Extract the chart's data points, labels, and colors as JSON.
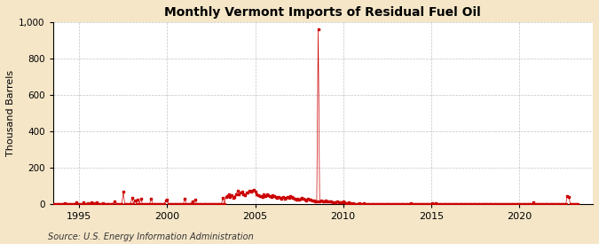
{
  "title": "Monthly Vermont Imports of Residual Fuel Oil",
  "ylabel": "Thousand Barrels",
  "source": "Source: U.S. Energy Information Administration",
  "bg_color": "#f5e6c8",
  "plot_bg_color": "#ffffff",
  "line_color": "#cc0000",
  "marker_color": "#cc0000",
  "ylim": [
    0,
    1000
  ],
  "yticks": [
    0,
    200,
    400,
    600,
    800,
    1000
  ],
  "ytick_labels": [
    "0",
    "200",
    "400",
    "600",
    "800",
    "1,000"
  ],
  "xlim_start": 1993.5,
  "xlim_end": 2024.2,
  "xticks": [
    1995,
    2000,
    2005,
    2010,
    2015,
    2020
  ],
  "data": [
    [
      1993.083,
      0
    ],
    [
      1993.167,
      0
    ],
    [
      1993.25,
      0
    ],
    [
      1993.333,
      0
    ],
    [
      1993.417,
      0
    ],
    [
      1993.5,
      0
    ],
    [
      1993.583,
      0
    ],
    [
      1993.667,
      0
    ],
    [
      1993.75,
      0
    ],
    [
      1993.833,
      0
    ],
    [
      1993.917,
      0
    ],
    [
      1994.0,
      0
    ],
    [
      1994.083,
      0
    ],
    [
      1994.167,
      5
    ],
    [
      1994.25,
      0
    ],
    [
      1994.333,
      0
    ],
    [
      1994.417,
      0
    ],
    [
      1994.5,
      0
    ],
    [
      1994.583,
      0
    ],
    [
      1994.667,
      0
    ],
    [
      1994.75,
      0
    ],
    [
      1994.833,
      10
    ],
    [
      1994.917,
      0
    ],
    [
      1995.0,
      0
    ],
    [
      1995.083,
      0
    ],
    [
      1995.167,
      0
    ],
    [
      1995.25,
      8
    ],
    [
      1995.333,
      0
    ],
    [
      1995.417,
      0
    ],
    [
      1995.5,
      5
    ],
    [
      1995.583,
      0
    ],
    [
      1995.667,
      10
    ],
    [
      1995.75,
      0
    ],
    [
      1995.833,
      5
    ],
    [
      1995.917,
      0
    ],
    [
      1996.0,
      10
    ],
    [
      1996.083,
      0
    ],
    [
      1996.167,
      0
    ],
    [
      1996.25,
      0
    ],
    [
      1996.333,
      5
    ],
    [
      1996.417,
      0
    ],
    [
      1996.5,
      0
    ],
    [
      1996.583,
      0
    ],
    [
      1996.667,
      0
    ],
    [
      1996.75,
      0
    ],
    [
      1996.833,
      0
    ],
    [
      1996.917,
      0
    ],
    [
      1997.0,
      15
    ],
    [
      1997.083,
      0
    ],
    [
      1997.167,
      0
    ],
    [
      1997.25,
      0
    ],
    [
      1997.333,
      0
    ],
    [
      1997.417,
      0
    ],
    [
      1997.5,
      65
    ],
    [
      1997.583,
      0
    ],
    [
      1997.667,
      0
    ],
    [
      1997.75,
      0
    ],
    [
      1997.833,
      0
    ],
    [
      1997.917,
      0
    ],
    [
      1998.0,
      35
    ],
    [
      1998.083,
      0
    ],
    [
      1998.167,
      20
    ],
    [
      1998.25,
      0
    ],
    [
      1998.333,
      25
    ],
    [
      1998.417,
      0
    ],
    [
      1998.5,
      30
    ],
    [
      1998.583,
      0
    ],
    [
      1998.667,
      0
    ],
    [
      1998.75,
      0
    ],
    [
      1998.833,
      0
    ],
    [
      1998.917,
      0
    ],
    [
      1999.0,
      0
    ],
    [
      1999.083,
      30
    ],
    [
      1999.167,
      0
    ],
    [
      1999.25,
      0
    ],
    [
      1999.333,
      0
    ],
    [
      1999.417,
      0
    ],
    [
      1999.5,
      0
    ],
    [
      1999.583,
      0
    ],
    [
      1999.667,
      0
    ],
    [
      1999.75,
      0
    ],
    [
      1999.833,
      0
    ],
    [
      1999.917,
      20
    ],
    [
      2000.0,
      25
    ],
    [
      2000.083,
      0
    ],
    [
      2000.167,
      0
    ],
    [
      2000.25,
      0
    ],
    [
      2000.333,
      0
    ],
    [
      2000.417,
      0
    ],
    [
      2000.5,
      0
    ],
    [
      2000.583,
      0
    ],
    [
      2000.667,
      0
    ],
    [
      2000.75,
      0
    ],
    [
      2000.833,
      0
    ],
    [
      2000.917,
      0
    ],
    [
      2001.0,
      30
    ],
    [
      2001.083,
      0
    ],
    [
      2001.167,
      0
    ],
    [
      2001.25,
      0
    ],
    [
      2001.333,
      0
    ],
    [
      2001.417,
      15
    ],
    [
      2001.5,
      0
    ],
    [
      2001.583,
      25
    ],
    [
      2001.667,
      0
    ],
    [
      2001.75,
      0
    ],
    [
      2001.833,
      0
    ],
    [
      2001.917,
      0
    ],
    [
      2002.0,
      0
    ],
    [
      2002.083,
      0
    ],
    [
      2002.167,
      0
    ],
    [
      2002.25,
      0
    ],
    [
      2002.333,
      0
    ],
    [
      2002.417,
      0
    ],
    [
      2002.5,
      0
    ],
    [
      2002.583,
      0
    ],
    [
      2002.667,
      0
    ],
    [
      2002.75,
      0
    ],
    [
      2002.833,
      0
    ],
    [
      2002.917,
      0
    ],
    [
      2003.0,
      0
    ],
    [
      2003.083,
      0
    ],
    [
      2003.167,
      35
    ],
    [
      2003.25,
      0
    ],
    [
      2003.333,
      40
    ],
    [
      2003.417,
      45
    ],
    [
      2003.5,
      55
    ],
    [
      2003.583,
      40
    ],
    [
      2003.667,
      50
    ],
    [
      2003.75,
      35
    ],
    [
      2003.833,
      40
    ],
    [
      2003.917,
      55
    ],
    [
      2004.0,
      70
    ],
    [
      2004.083,
      55
    ],
    [
      2004.167,
      60
    ],
    [
      2004.25,
      65
    ],
    [
      2004.333,
      55
    ],
    [
      2004.417,
      50
    ],
    [
      2004.5,
      60
    ],
    [
      2004.583,
      60
    ],
    [
      2004.667,
      70
    ],
    [
      2004.75,
      65
    ],
    [
      2004.833,
      70
    ],
    [
      2004.917,
      75
    ],
    [
      2005.0,
      65
    ],
    [
      2005.083,
      55
    ],
    [
      2005.167,
      50
    ],
    [
      2005.25,
      45
    ],
    [
      2005.333,
      45
    ],
    [
      2005.417,
      40
    ],
    [
      2005.5,
      55
    ],
    [
      2005.583,
      45
    ],
    [
      2005.667,
      55
    ],
    [
      2005.75,
      50
    ],
    [
      2005.833,
      45
    ],
    [
      2005.917,
      40
    ],
    [
      2006.0,
      50
    ],
    [
      2006.083,
      45
    ],
    [
      2006.167,
      40
    ],
    [
      2006.25,
      35
    ],
    [
      2006.333,
      40
    ],
    [
      2006.417,
      35
    ],
    [
      2006.5,
      30
    ],
    [
      2006.583,
      40
    ],
    [
      2006.667,
      30
    ],
    [
      2006.75,
      35
    ],
    [
      2006.833,
      40
    ],
    [
      2006.917,
      35
    ],
    [
      2007.0,
      45
    ],
    [
      2007.083,
      40
    ],
    [
      2007.167,
      35
    ],
    [
      2007.25,
      30
    ],
    [
      2007.333,
      25
    ],
    [
      2007.417,
      30
    ],
    [
      2007.5,
      25
    ],
    [
      2007.583,
      30
    ],
    [
      2007.667,
      35
    ],
    [
      2007.75,
      30
    ],
    [
      2007.833,
      25
    ],
    [
      2007.917,
      20
    ],
    [
      2008.0,
      30
    ],
    [
      2008.083,
      25
    ],
    [
      2008.167,
      25
    ],
    [
      2008.25,
      20
    ],
    [
      2008.333,
      20
    ],
    [
      2008.417,
      15
    ],
    [
      2008.5,
      15
    ],
    [
      2008.583,
      960
    ],
    [
      2008.667,
      15
    ],
    [
      2008.75,
      20
    ],
    [
      2008.833,
      15
    ],
    [
      2008.917,
      15
    ],
    [
      2009.0,
      20
    ],
    [
      2009.083,
      15
    ],
    [
      2009.167,
      15
    ],
    [
      2009.25,
      15
    ],
    [
      2009.333,
      15
    ],
    [
      2009.417,
      10
    ],
    [
      2009.5,
      10
    ],
    [
      2009.583,
      10
    ],
    [
      2009.667,
      15
    ],
    [
      2009.75,
      10
    ],
    [
      2009.833,
      10
    ],
    [
      2009.917,
      10
    ],
    [
      2010.0,
      15
    ],
    [
      2010.083,
      10
    ],
    [
      2010.167,
      5
    ],
    [
      2010.25,
      5
    ],
    [
      2010.333,
      10
    ],
    [
      2010.417,
      5
    ],
    [
      2010.5,
      0
    ],
    [
      2010.583,
      5
    ],
    [
      2010.667,
      0
    ],
    [
      2010.75,
      0
    ],
    [
      2010.833,
      0
    ],
    [
      2010.917,
      5
    ],
    [
      2011.0,
      0
    ],
    [
      2011.083,
      0
    ],
    [
      2011.167,
      5
    ],
    [
      2011.25,
      0
    ],
    [
      2011.333,
      0
    ],
    [
      2011.417,
      0
    ],
    [
      2011.5,
      0
    ],
    [
      2011.583,
      0
    ],
    [
      2011.667,
      0
    ],
    [
      2011.75,
      0
    ],
    [
      2011.833,
      0
    ],
    [
      2011.917,
      0
    ],
    [
      2012.0,
      0
    ],
    [
      2012.083,
      0
    ],
    [
      2012.167,
      0
    ],
    [
      2012.25,
      0
    ],
    [
      2012.333,
      0
    ],
    [
      2012.417,
      0
    ],
    [
      2012.5,
      0
    ],
    [
      2012.583,
      0
    ],
    [
      2012.667,
      0
    ],
    [
      2012.75,
      0
    ],
    [
      2012.833,
      0
    ],
    [
      2012.917,
      0
    ],
    [
      2013.0,
      0
    ],
    [
      2013.083,
      0
    ],
    [
      2013.167,
      0
    ],
    [
      2013.25,
      0
    ],
    [
      2013.333,
      0
    ],
    [
      2013.417,
      0
    ],
    [
      2013.5,
      0
    ],
    [
      2013.583,
      0
    ],
    [
      2013.667,
      0
    ],
    [
      2013.75,
      0
    ],
    [
      2013.833,
      5
    ],
    [
      2013.917,
      0
    ],
    [
      2014.0,
      0
    ],
    [
      2014.083,
      0
    ],
    [
      2014.167,
      0
    ],
    [
      2014.25,
      0
    ],
    [
      2014.333,
      0
    ],
    [
      2014.417,
      0
    ],
    [
      2014.5,
      0
    ],
    [
      2014.583,
      0
    ],
    [
      2014.667,
      0
    ],
    [
      2014.75,
      0
    ],
    [
      2014.833,
      0
    ],
    [
      2014.917,
      0
    ],
    [
      2015.0,
      0
    ],
    [
      2015.083,
      5
    ],
    [
      2015.167,
      0
    ],
    [
      2015.25,
      5
    ],
    [
      2015.333,
      0
    ],
    [
      2015.417,
      0
    ],
    [
      2015.5,
      0
    ],
    [
      2015.583,
      0
    ],
    [
      2015.667,
      0
    ],
    [
      2015.75,
      0
    ],
    [
      2015.833,
      0
    ],
    [
      2015.917,
      0
    ],
    [
      2016.0,
      0
    ],
    [
      2016.083,
      0
    ],
    [
      2016.167,
      0
    ],
    [
      2016.25,
      0
    ],
    [
      2016.333,
      0
    ],
    [
      2016.417,
      0
    ],
    [
      2016.5,
      0
    ],
    [
      2016.583,
      0
    ],
    [
      2016.667,
      0
    ],
    [
      2016.75,
      0
    ],
    [
      2016.833,
      0
    ],
    [
      2016.917,
      0
    ],
    [
      2017.0,
      0
    ],
    [
      2017.083,
      0
    ],
    [
      2017.167,
      0
    ],
    [
      2017.25,
      0
    ],
    [
      2017.333,
      0
    ],
    [
      2017.417,
      0
    ],
    [
      2017.5,
      0
    ],
    [
      2017.583,
      0
    ],
    [
      2017.667,
      0
    ],
    [
      2017.75,
      0
    ],
    [
      2017.833,
      0
    ],
    [
      2017.917,
      0
    ],
    [
      2018.0,
      0
    ],
    [
      2018.083,
      0
    ],
    [
      2018.167,
      0
    ],
    [
      2018.25,
      0
    ],
    [
      2018.333,
      0
    ],
    [
      2018.417,
      0
    ],
    [
      2018.5,
      0
    ],
    [
      2018.583,
      0
    ],
    [
      2018.667,
      0
    ],
    [
      2018.75,
      0
    ],
    [
      2018.833,
      0
    ],
    [
      2018.917,
      0
    ],
    [
      2019.0,
      0
    ],
    [
      2019.083,
      0
    ],
    [
      2019.167,
      0
    ],
    [
      2019.25,
      0
    ],
    [
      2019.333,
      0
    ],
    [
      2019.417,
      0
    ],
    [
      2019.5,
      0
    ],
    [
      2019.583,
      0
    ],
    [
      2019.667,
      0
    ],
    [
      2019.75,
      0
    ],
    [
      2019.833,
      0
    ],
    [
      2019.917,
      0
    ],
    [
      2020.0,
      0
    ],
    [
      2020.083,
      0
    ],
    [
      2020.167,
      0
    ],
    [
      2020.25,
      0
    ],
    [
      2020.333,
      0
    ],
    [
      2020.417,
      0
    ],
    [
      2020.5,
      0
    ],
    [
      2020.583,
      0
    ],
    [
      2020.667,
      0
    ],
    [
      2020.75,
      0
    ],
    [
      2020.833,
      8
    ],
    [
      2020.917,
      0
    ],
    [
      2021.0,
      0
    ],
    [
      2021.083,
      0
    ],
    [
      2021.167,
      0
    ],
    [
      2021.25,
      0
    ],
    [
      2021.333,
      0
    ],
    [
      2021.417,
      0
    ],
    [
      2021.5,
      0
    ],
    [
      2021.583,
      0
    ],
    [
      2021.667,
      0
    ],
    [
      2021.75,
      0
    ],
    [
      2021.833,
      0
    ],
    [
      2021.917,
      0
    ],
    [
      2022.0,
      0
    ],
    [
      2022.083,
      0
    ],
    [
      2022.167,
      0
    ],
    [
      2022.25,
      0
    ],
    [
      2022.333,
      0
    ],
    [
      2022.417,
      0
    ],
    [
      2022.5,
      0
    ],
    [
      2022.583,
      0
    ],
    [
      2022.667,
      0
    ],
    [
      2022.75,
      45
    ],
    [
      2022.833,
      40
    ],
    [
      2022.917,
      0
    ],
    [
      2023.0,
      0
    ],
    [
      2023.083,
      0
    ],
    [
      2023.167,
      0
    ],
    [
      2023.25,
      0
    ],
    [
      2023.333,
      0
    ]
  ]
}
